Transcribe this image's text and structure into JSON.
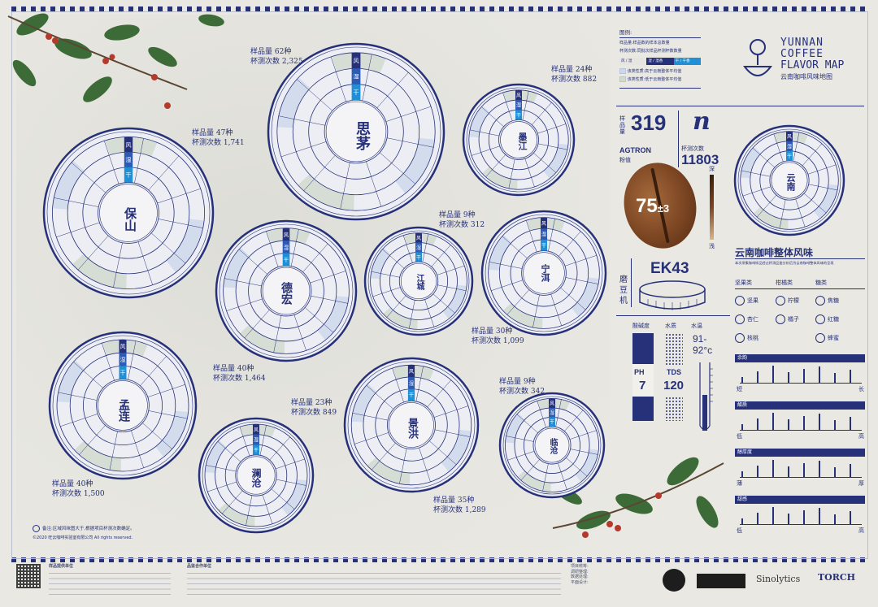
{
  "title": {
    "en_l1": "YUNNAN",
    "en_l2": "COFFEE",
    "en_l3": "FLAVOR MAP",
    "zh": "云南咖啡风味地图"
  },
  "legend": {
    "heading": "图例:",
    "line1": "样品量:样品数的样本总数量",
    "line2": "杯测次数:同批次样品杯测杯数数量",
    "tabs": [
      "风 / 湿",
      "湿 / 湿香",
      "干 / 干香"
    ],
    "above": "该类性质:高于云南整体平均值",
    "below": "该类性质:低于云南整体平均值"
  },
  "stats": {
    "sample_label": "样品量",
    "sample_value": "319",
    "n": "n",
    "cups_label": "杯测次数",
    "cups_value": "11803",
    "agtron_label": "AGTRON",
    "agtron_sub": "粉值",
    "agtron_value": "75",
    "agtron_pm": "±3",
    "dark": "深",
    "light": "浅",
    "grinder_label": "磨豆机",
    "grinder_value": "EK43",
    "ph_label": "酸碱度",
    "ph_name": "PH",
    "ph_value": "7",
    "water_label": "水质",
    "tds_name": "TDS",
    "tds_value": "120",
    "temp_label": "水温",
    "temp_value": "91-92°c"
  },
  "overall": {
    "title": "云南咖啡整体风味",
    "subtitle": "本次采集咖啡样品经过杯测品鉴分析后为云南咖啡整体风味的呈现",
    "cat1": "坚果类",
    "cat2": "柑橘类",
    "cat3": "糖类",
    "items": [
      "坚果",
      "杏仁",
      "核桃",
      "柠檬",
      "橘子",
      "焦糖",
      "红糖",
      "蜂蜜"
    ],
    "scales": [
      {
        "name": "余韵",
        "low": "短",
        "high": "长"
      },
      {
        "name": "酸质",
        "low": "低",
        "high": "高"
      },
      {
        "name": "醇厚度",
        "low": "薄",
        "high": "厚"
      },
      {
        "name": "甜感",
        "low": "低",
        "high": "高"
      }
    ]
  },
  "regions": [
    {
      "name": "思茅",
      "samples": "样品量 62种",
      "cups": "杯测次数 2,325"
    },
    {
      "name": "墨江",
      "samples": "样品量 24种",
      "cups": "杯测次数 882"
    },
    {
      "name": "保山",
      "samples": "样品量 47种",
      "cups": "杯测次数 1,741"
    },
    {
      "name": "德宏",
      "samples": "样品量 40种",
      "cups": "杯测次数 1,464"
    },
    {
      "name": "江城",
      "samples": "样品量 9种",
      "cups": "杯测次数 312"
    },
    {
      "name": "宁洱",
      "samples": "样品量 30种",
      "cups": "杯测次数 1,099"
    },
    {
      "name": "孟连",
      "samples": "样品量 40种",
      "cups": "杯测次数 1,500"
    },
    {
      "name": "澜沧",
      "samples": "样品量 23种",
      "cups": "杯测次数 849"
    },
    {
      "name": "景洪",
      "samples": "样品量 35种",
      "cups": "杯测次数 1,289"
    },
    {
      "name": "临沧",
      "samples": "样品量 9种",
      "cups": "杯测次数 342"
    },
    {
      "name": "云南",
      "samples": "",
      "cups": ""
    }
  ],
  "wheel_tabs": {
    "wind": "风",
    "wet": "湿",
    "dry": "干"
  },
  "note": "备注:区域风味图大于,根据项目杯测次数确定。",
  "copyright": "©2020 旺云咖啡实验室有限公司 All rights reserved.",
  "footer": {
    "left_heading": "样品提供单位",
    "mid_heading": "品鉴合作单位",
    "right_lines": [
      "项目统筹:",
      "调研整理:",
      "数据处理:",
      "平面设计:"
    ],
    "logo1": "Sinolytics",
    "logo2": "TORCH"
  }
}
